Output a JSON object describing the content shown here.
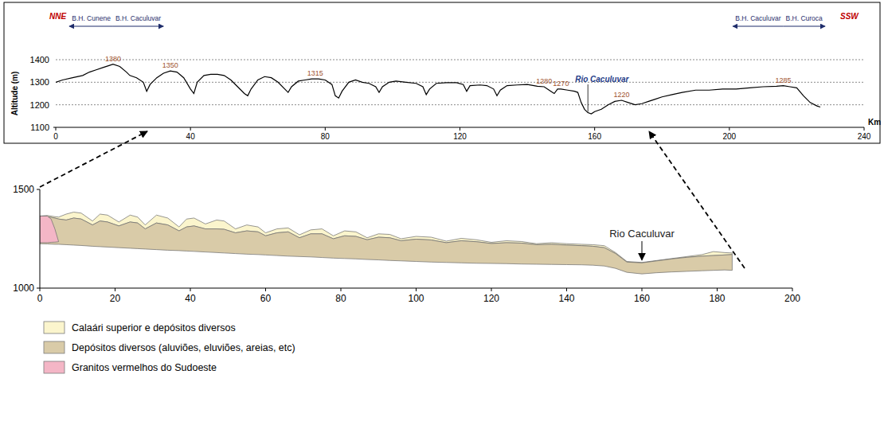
{
  "chart_data": [
    {
      "type": "line",
      "y_label": "Altitude (m)",
      "x_label": "Km",
      "direction_labels": {
        "start": "NNE",
        "end": "SSW"
      },
      "x": [
        0,
        2,
        5,
        8,
        10,
        12,
        14,
        16,
        17,
        19,
        21,
        22,
        24,
        26,
        27,
        28,
        30,
        32,
        34,
        36,
        38,
        40,
        41,
        42,
        44,
        46,
        48,
        50,
        52,
        54,
        56,
        57,
        58,
        60,
        62,
        64,
        66,
        68,
        69,
        70,
        72,
        74,
        76,
        78,
        80,
        82,
        83,
        84,
        85,
        87,
        89,
        91,
        93,
        95,
        96,
        97,
        99,
        101,
        104,
        107,
        109,
        110,
        111,
        113,
        116,
        119,
        121,
        122,
        123,
        126,
        128,
        130,
        131,
        132,
        134,
        137,
        140,
        143,
        145,
        147,
        148,
        149,
        150,
        152,
        154,
        155,
        156,
        157,
        158,
        159,
        160,
        162,
        164,
        166,
        168,
        170,
        172,
        174,
        176,
        178,
        180,
        183,
        186,
        190,
        194,
        198,
        202,
        206,
        210,
        214,
        216,
        218,
        220,
        222,
        224,
        226,
        227
      ],
      "series": [
        {
          "color": "#000000",
          "values": [
            1300,
            1310,
            1320,
            1330,
            1345,
            1355,
            1365,
            1375,
            1380,
            1370,
            1345,
            1330,
            1320,
            1300,
            1260,
            1290,
            1320,
            1340,
            1350,
            1345,
            1320,
            1270,
            1250,
            1300,
            1330,
            1335,
            1335,
            1330,
            1310,
            1280,
            1250,
            1240,
            1270,
            1310,
            1325,
            1320,
            1300,
            1270,
            1255,
            1280,
            1305,
            1310,
            1315,
            1315,
            1310,
            1290,
            1240,
            1230,
            1260,
            1300,
            1310,
            1300,
            1295,
            1280,
            1255,
            1280,
            1300,
            1305,
            1300,
            1295,
            1280,
            1245,
            1270,
            1295,
            1298,
            1298,
            1290,
            1260,
            1285,
            1288,
            1285,
            1270,
            1240,
            1265,
            1285,
            1288,
            1290,
            1282,
            1280,
            1260,
            1250,
            1270,
            1270,
            1265,
            1260,
            1255,
            1210,
            1180,
            1165,
            1160,
            1170,
            1180,
            1200,
            1215,
            1220,
            1210,
            1200,
            1205,
            1215,
            1225,
            1235,
            1245,
            1255,
            1265,
            1265,
            1270,
            1270,
            1275,
            1280,
            1282,
            1285,
            1280,
            1275,
            1240,
            1210,
            1195,
            1190
          ]
        }
      ],
      "xlim": [
        0,
        240
      ],
      "ylim": [
        1100,
        1400
      ],
      "xticks": [
        0,
        40,
        80,
        120,
        160,
        200,
        240
      ],
      "yticks": [
        1100,
        1200,
        1300,
        1400
      ],
      "grid": true,
      "peak_labels": [
        {
          "x": 17,
          "value": 1380
        },
        {
          "x": 34,
          "value": 1350
        },
        {
          "x": 77,
          "value": 1315
        },
        {
          "x": 145,
          "value": 1280
        },
        {
          "x": 150,
          "value": 1270
        },
        {
          "x": 168,
          "value": 1220
        },
        {
          "x": 216,
          "value": 1285
        }
      ],
      "divides": [
        {
          "x": 17,
          "left": "B.H. Cunene",
          "right": "B.H. Caculuvar"
        },
        {
          "x": 216,
          "left": "B.H. Caculuvar",
          "right": "B.H. Curoca"
        }
      ],
      "river": {
        "text": "Rio Caculuvar",
        "x": 158
      }
    },
    {
      "type": "area",
      "xlim": [
        0,
        200
      ],
      "ylim": [
        1000,
        1500
      ],
      "xticks": [
        0,
        20,
        40,
        60,
        80,
        100,
        120,
        140,
        160,
        180,
        200
      ],
      "yticks": [
        1000,
        1500
      ],
      "legend": "bottom-left",
      "river": {
        "text": "Rio Caculuvar",
        "x": 160
      },
      "series": [
        {
          "name": "Calaári superior e depósitos diversos",
          "color": "#fbf5cd",
          "x": [
            0,
            2,
            4,
            5,
            7,
            9,
            11,
            14,
            16,
            18,
            21,
            24,
            26,
            28,
            31,
            34,
            37,
            39,
            41,
            44,
            47,
            49,
            52,
            55,
            58,
            60,
            63,
            66,
            69,
            72,
            75,
            78,
            81,
            84,
            87,
            90,
            93,
            96,
            100,
            104,
            108,
            112,
            116,
            120,
            124,
            128,
            132,
            136,
            140,
            144,
            147,
            150,
            153,
            156,
            160,
            164,
            168,
            172,
            176,
            179,
            182,
            184
          ],
          "values": [
            1365,
            1368,
            1362,
            1360,
            1375,
            1385,
            1380,
            1340,
            1375,
            1370,
            1335,
            1370,
            1360,
            1320,
            1370,
            1355,
            1310,
            1350,
            1355,
            1325,
            1345,
            1340,
            1300,
            1320,
            1310,
            1280,
            1300,
            1305,
            1270,
            1295,
            1300,
            1265,
            1290,
            1285,
            1255,
            1275,
            1272,
            1250,
            1262,
            1258,
            1238,
            1252,
            1245,
            1232,
            1240,
            1236,
            1225,
            1230,
            1225,
            1222,
            1220,
            1215,
            1180,
            1135,
            1130,
            1140,
            1150,
            1160,
            1170,
            1185,
            1180,
            1178
          ],
          "base": [
            1365,
            1362,
            1355,
            1350,
            1345,
            1355,
            1350,
            1320,
            1340,
            1335,
            1315,
            1335,
            1330,
            1300,
            1330,
            1320,
            1290,
            1310,
            1315,
            1300,
            1300,
            1298,
            1280,
            1290,
            1285,
            1265,
            1280,
            1285,
            1255,
            1275,
            1275,
            1250,
            1265,
            1262,
            1245,
            1258,
            1255,
            1240,
            1248,
            1244,
            1230,
            1240,
            1235,
            1226,
            1230,
            1228,
            1220,
            1222,
            1218,
            1215,
            1212,
            1205,
            1175,
            1132,
            1128,
            1138,
            1148,
            1156,
            1162,
            1165,
            1168,
            1170
          ]
        },
        {
          "name": "Depósitos diversos (aluviões, eluviões, areias, etc)",
          "color": "#d9cba8",
          "x": [
            0,
            2,
            4,
            5,
            7,
            9,
            11,
            14,
            16,
            18,
            21,
            24,
            26,
            28,
            31,
            34,
            37,
            39,
            41,
            44,
            47,
            49,
            52,
            55,
            58,
            60,
            63,
            66,
            69,
            72,
            75,
            78,
            81,
            84,
            87,
            90,
            93,
            96,
            100,
            104,
            108,
            112,
            116,
            120,
            124,
            128,
            132,
            136,
            140,
            144,
            147,
            150,
            153,
            156,
            160,
            164,
            168,
            172,
            176,
            179,
            182,
            184
          ],
          "values": [
            1365,
            1362,
            1355,
            1350,
            1345,
            1355,
            1350,
            1320,
            1340,
            1335,
            1315,
            1335,
            1330,
            1300,
            1330,
            1320,
            1290,
            1310,
            1315,
            1300,
            1300,
            1298,
            1280,
            1290,
            1285,
            1265,
            1280,
            1285,
            1255,
            1275,
            1275,
            1250,
            1265,
            1262,
            1245,
            1258,
            1255,
            1240,
            1248,
            1244,
            1230,
            1240,
            1235,
            1226,
            1230,
            1228,
            1220,
            1222,
            1218,
            1215,
            1212,
            1205,
            1175,
            1132,
            1128,
            1138,
            1148,
            1156,
            1162,
            1165,
            1168,
            1170
          ],
          "base": [
            1225,
            1224,
            1222,
            1222,
            1220,
            1218,
            1216,
            1212,
            1210,
            1208,
            1205,
            1202,
            1200,
            1198,
            1195,
            1192,
            1190,
            1188,
            1186,
            1183,
            1180,
            1178,
            1175,
            1172,
            1170,
            1168,
            1165,
            1162,
            1160,
            1158,
            1155,
            1152,
            1150,
            1148,
            1145,
            1143,
            1140,
            1138,
            1135,
            1132,
            1130,
            1128,
            1126,
            1125,
            1124,
            1122,
            1121,
            1120,
            1119,
            1118,
            1116,
            1112,
            1100,
            1080,
            1072,
            1078,
            1082,
            1085,
            1088,
            1090,
            1092,
            1090
          ]
        },
        {
          "name": "Granitos vermelhos do Sudoeste",
          "color": "#f4b6c6",
          "x": [
            0,
            2,
            3,
            4,
            5
          ],
          "values": [
            1365,
            1365,
            1350,
            1300,
            1235
          ],
          "base": [
            1230,
            1230,
            1232,
            1233,
            1235
          ]
        }
      ]
    }
  ]
}
